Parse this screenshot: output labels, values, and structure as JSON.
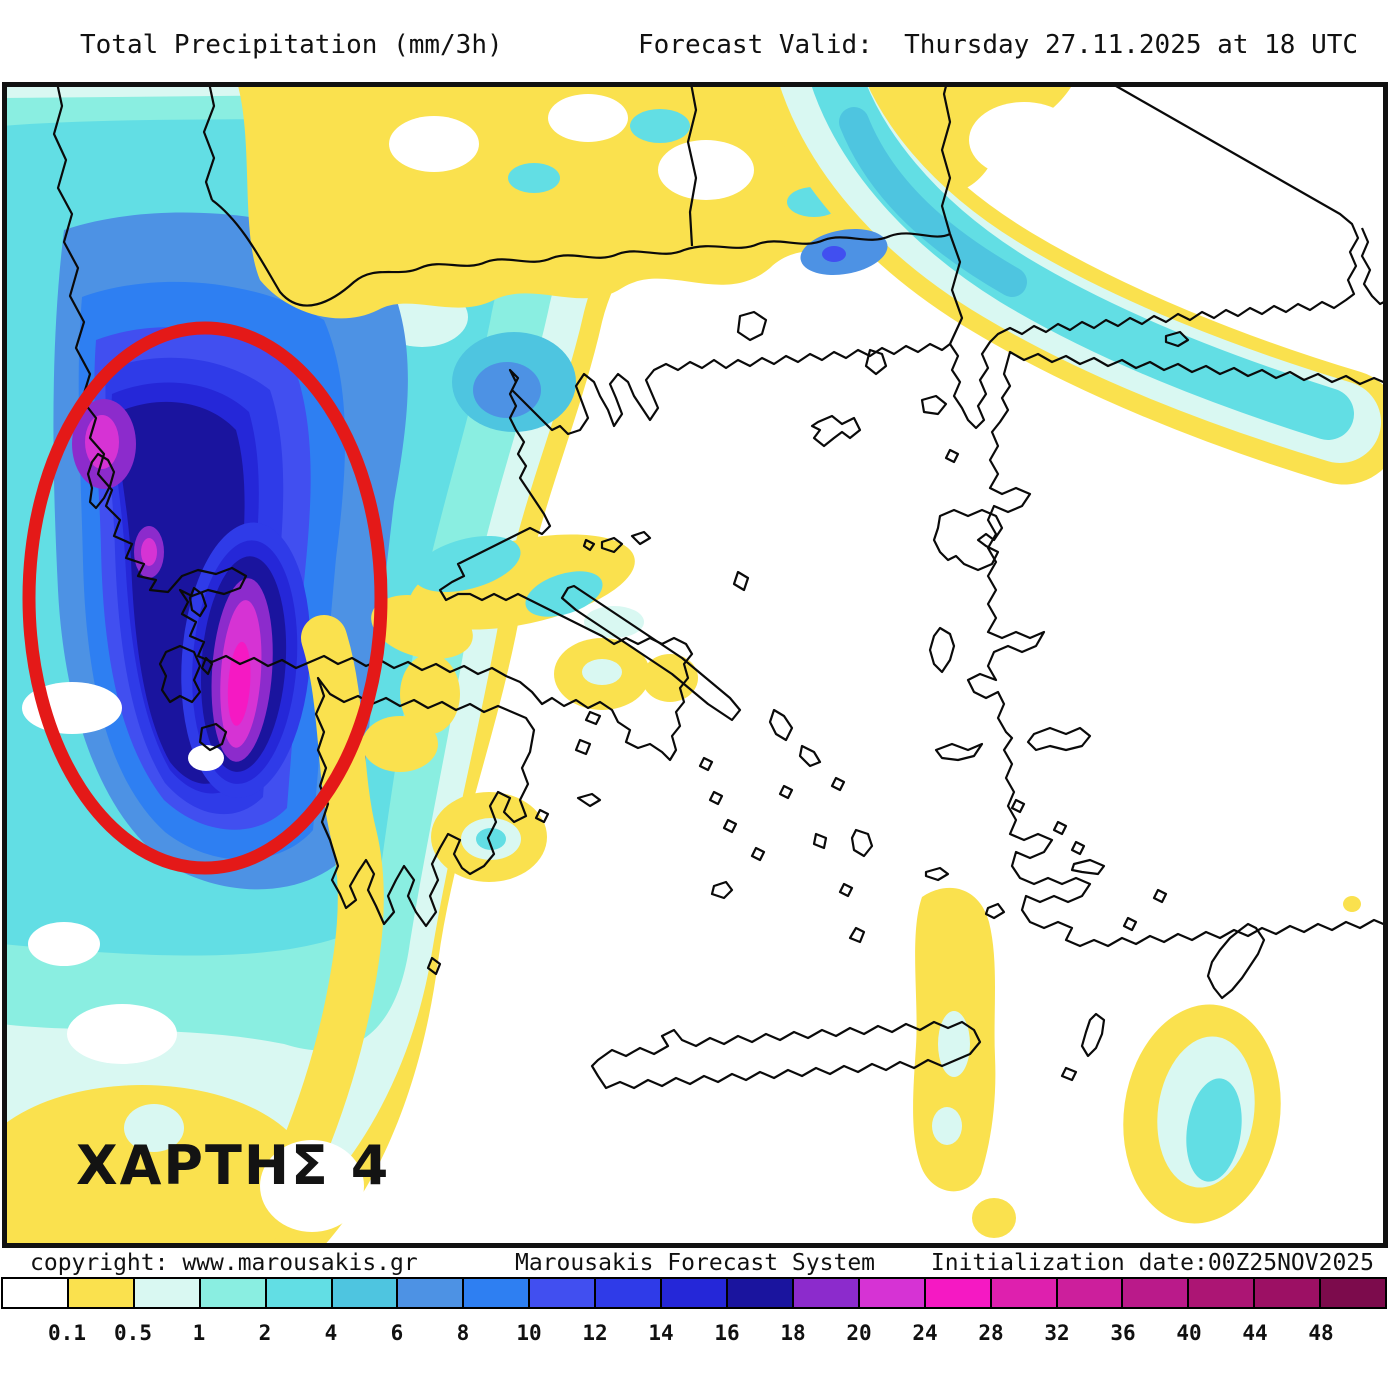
{
  "header": {
    "title": "Total Precipitation (mm/3h)",
    "forecast_valid": "Forecast Valid:  Thursday 27.11.2025 at 18 UTC"
  },
  "map": {
    "annotation_label": "ΧΑΡΤΗΣ 4",
    "highlight_ellipse_color": "#e41918"
  },
  "footer": {
    "copyright": "copyright: www.marousakis.gr",
    "system_name": "Marousakis Forecast System",
    "initialization": "Initialization date:00Z25NOV2025"
  },
  "legend": {
    "title": "Total Precipitation (mm/3h)",
    "tick_labels": [
      "0.1",
      "0.5",
      "1",
      "2",
      "4",
      "6",
      "8",
      "10",
      "12",
      "14",
      "16",
      "18",
      "20",
      "24",
      "28",
      "32",
      "36",
      "40",
      "44",
      "48"
    ],
    "cell_colors": [
      "#ffffff",
      "#fae14e",
      "#d9f8f2",
      "#8aeee1",
      "#62dee4",
      "#4ec5e0",
      "#4d92e4",
      "#2e7ff2",
      "#414ff0",
      "#2f3be8",
      "#2527d8",
      "#1a149e",
      "#8c2bcc",
      "#d633d4",
      "#f519c3",
      "#de20ae",
      "#cc1f9c",
      "#ba1a8a",
      "#ac1574",
      "#9c1064",
      "#7c0b4c"
    ]
  }
}
